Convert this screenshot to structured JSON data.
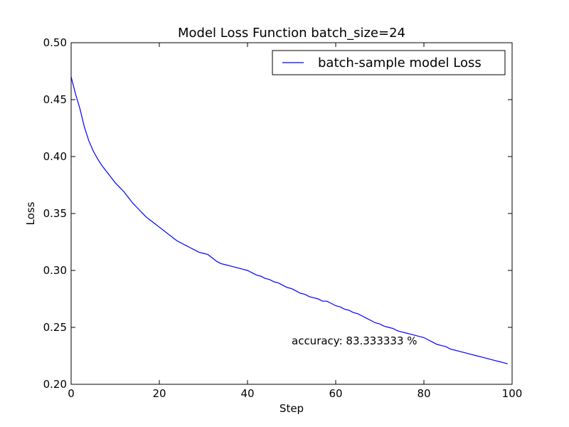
{
  "chart_data": {
    "type": "line",
    "title": "Model Loss Function batch_size=24",
    "xlabel": "Step",
    "ylabel": "Loss",
    "xlim": [
      0,
      100
    ],
    "ylim": [
      0.2,
      0.5
    ],
    "grid": false,
    "legend_position": "top-right",
    "x_ticks": [
      0,
      20,
      40,
      60,
      80,
      100
    ],
    "x_tick_labels": [
      "0",
      "20",
      "40",
      "60",
      "80",
      "100"
    ],
    "y_ticks": [
      0.2,
      0.25,
      0.3,
      0.35,
      0.4,
      0.45,
      0.5
    ],
    "y_tick_labels": [
      "0.20",
      "0.25",
      "0.30",
      "0.35",
      "0.40",
      "0.45",
      "0.50"
    ],
    "annotation": {
      "text": "accuracy: 83.333333 %",
      "x": 50,
      "y": 0.235
    },
    "series": [
      {
        "name": "batch-sample model Loss",
        "color": "#0000ff",
        "x": [
          0,
          1,
          2,
          3,
          4,
          5,
          6,
          7,
          8,
          9,
          10,
          11,
          12,
          13,
          14,
          15,
          16,
          17,
          18,
          19,
          20,
          21,
          22,
          23,
          24,
          25,
          26,
          27,
          28,
          29,
          30,
          31,
          32,
          33,
          34,
          35,
          36,
          37,
          38,
          39,
          40,
          41,
          42,
          43,
          44,
          45,
          46,
          47,
          48,
          49,
          50,
          51,
          52,
          53,
          54,
          55,
          56,
          57,
          58,
          59,
          60,
          61,
          62,
          63,
          64,
          65,
          66,
          67,
          68,
          69,
          70,
          71,
          72,
          73,
          74,
          75,
          76,
          77,
          78,
          79,
          80,
          81,
          82,
          83,
          84,
          85,
          86,
          87,
          88,
          89,
          90,
          91,
          92,
          93,
          94,
          95,
          96,
          97,
          98,
          99
        ],
        "values": [
          0.47,
          0.455,
          0.442,
          0.426,
          0.414,
          0.405,
          0.398,
          0.392,
          0.387,
          0.382,
          0.377,
          0.373,
          0.369,
          0.364,
          0.359,
          0.355,
          0.351,
          0.347,
          0.344,
          0.341,
          0.338,
          0.335,
          0.332,
          0.329,
          0.326,
          0.324,
          0.322,
          0.32,
          0.318,
          0.316,
          0.315,
          0.314,
          0.311,
          0.308,
          0.306,
          0.305,
          0.304,
          0.303,
          0.302,
          0.301,
          0.3,
          0.298,
          0.296,
          0.295,
          0.293,
          0.292,
          0.29,
          0.289,
          0.287,
          0.285,
          0.284,
          0.282,
          0.28,
          0.279,
          0.277,
          0.276,
          0.275,
          0.273,
          0.273,
          0.271,
          0.269,
          0.268,
          0.266,
          0.265,
          0.263,
          0.262,
          0.26,
          0.258,
          0.256,
          0.254,
          0.253,
          0.251,
          0.25,
          0.249,
          0.247,
          0.246,
          0.245,
          0.244,
          0.243,
          0.242,
          0.241,
          0.239,
          0.237,
          0.235,
          0.234,
          0.233,
          0.231,
          0.23,
          0.229,
          0.228,
          0.227,
          0.226,
          0.225,
          0.224,
          0.223,
          0.222,
          0.221,
          0.22,
          0.219,
          0.218
        ]
      }
    ]
  }
}
